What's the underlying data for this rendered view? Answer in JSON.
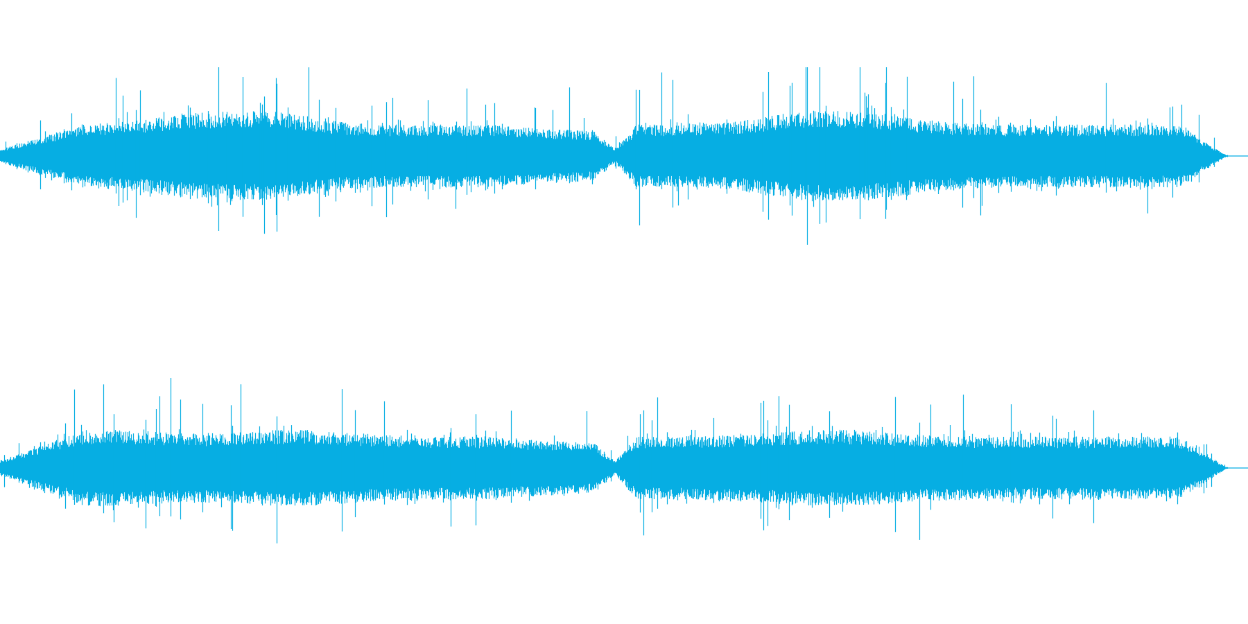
{
  "waveform": {
    "color": "#06AEE3",
    "background": "#FFFFFF",
    "channels": [
      {
        "label": ""
      },
      {
        "label": ""
      }
    ]
  }
}
